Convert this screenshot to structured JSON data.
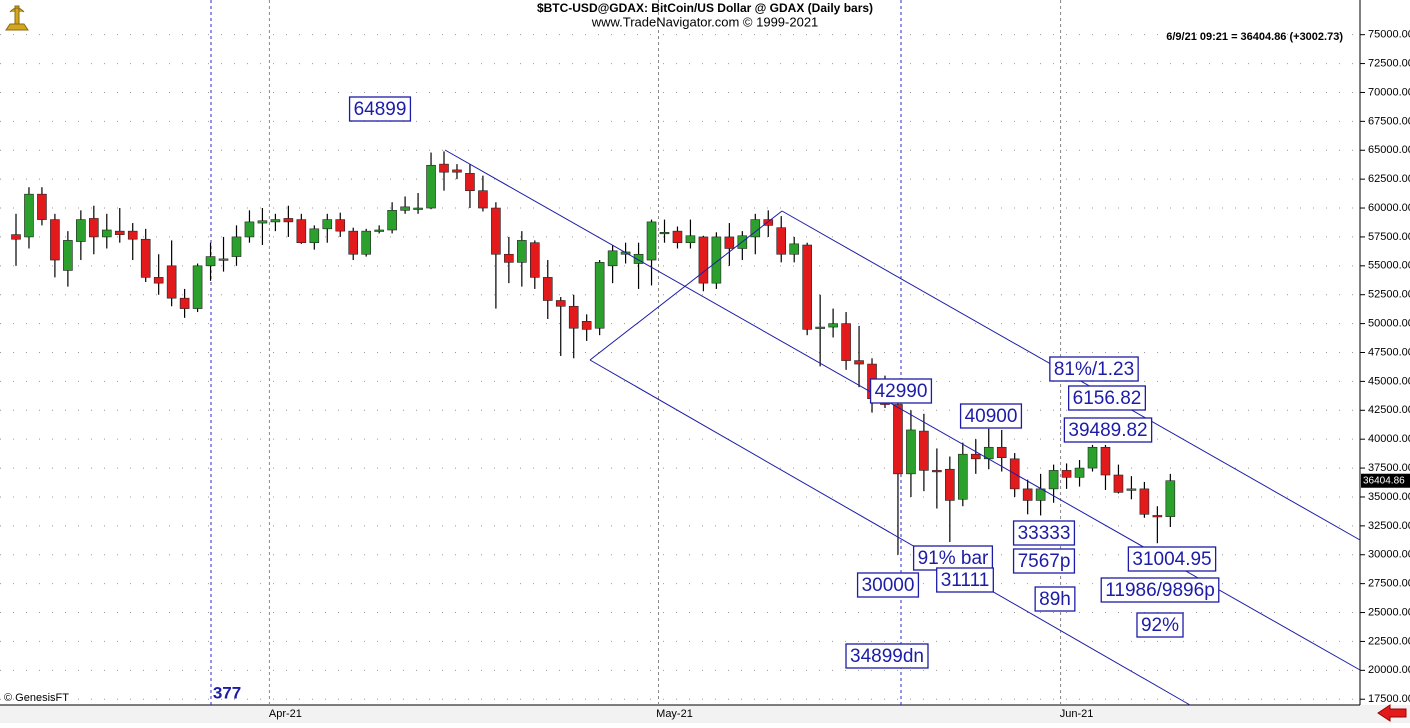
{
  "chart_data": {
    "type": "candlestick",
    "title": "$BTC-USD@GDAX:  BitCoin/US Dollar @ GDAX  (Daily bars)",
    "subtitle": "www.TradeNavigator.com © 1999-2021",
    "info": "6/9/21 09:21 = 36404.86 (+3002.73)",
    "credit": "© GenesisFT",
    "up_color": "#2ca02c",
    "down_color": "#e31a1c",
    "categories": [
      null,
      null,
      null,
      null,
      null,
      null,
      null,
      null,
      null,
      null,
      null,
      null,
      null,
      null,
      null,
      null,
      null,
      null,
      null,
      null,
      "Apr-21",
      null,
      null,
      null,
      null,
      null,
      null,
      null,
      null,
      null,
      null,
      null,
      null,
      null,
      null,
      null,
      null,
      null,
      null,
      null,
      null,
      null,
      null,
      null,
      null,
      null,
      null,
      null,
      null,
      null,
      "May-21",
      null,
      null,
      null,
      null,
      null,
      null,
      null,
      null,
      null,
      null,
      null,
      null,
      null,
      null,
      null,
      null,
      null,
      null,
      null,
      null,
      null,
      null,
      null,
      null,
      null,
      null,
      null,
      null,
      null,
      null,
      "Jun-21",
      null,
      null,
      null,
      null,
      null,
      null,
      null,
      null
    ],
    "open": [
      57700,
      57500,
      61200,
      59000,
      54600,
      57100,
      59100,
      57500,
      58000,
      58000,
      57300,
      54000,
      55000,
      52200,
      51300,
      55000,
      55500,
      55800,
      57500,
      58700,
      58800,
      59100,
      59000,
      57000,
      58200,
      59000,
      58000,
      56000,
      58000,
      58100,
      59800,
      59900,
      60000,
      63800,
      63300,
      63000,
      61500,
      60000,
      56000,
      55300,
      57000,
      54000,
      52000,
      51500,
      50200,
      49600,
      55000,
      56000,
      55200,
      55500,
      57800,
      58000,
      57000,
      57500,
      53500,
      57500,
      56500,
      57500,
      59000,
      58300,
      56000,
      56800,
      49700,
      49700,
      50000,
      46800,
      46500,
      44000,
      43000,
      37000,
      40700,
      37300,
      37400,
      34800,
      38700,
      38300,
      39300,
      38300,
      35700,
      34700,
      35700,
      37300,
      36700,
      37500,
      39300,
      36900,
      35600,
      35700,
      33400,
      33300
    ],
    "high": [
      59500,
      61800,
      61800,
      59500,
      58000,
      59800,
      60200,
      59500,
      60000,
      58700,
      58200,
      56000,
      57200,
      53000,
      55200,
      57000,
      57500,
      58500,
      59800,
      60000,
      59500,
      60200,
      59500,
      58500,
      59500,
      59600,
      58300,
      58200,
      58500,
      60500,
      61000,
      61300,
      64800,
      64900,
      63800,
      63800,
      62800,
      60500,
      57500,
      58000,
      57200,
      55500,
      52300,
      52500,
      50800,
      55500,
      56800,
      57000,
      57000,
      59000,
      59000,
      58400,
      59000,
      57600,
      57900,
      58700,
      58000,
      59500,
      59800,
      59300,
      57500,
      57000,
      52500,
      51300,
      51000,
      49800,
      47000,
      45500,
      43200,
      42500,
      42200,
      39200,
      38500,
      39700,
      40000,
      40900,
      40800,
      38800,
      36500,
      37000,
      37800,
      37900,
      38200,
      39500,
      39500,
      37800,
      36800,
      36300,
      34200,
      37000
    ],
    "low": [
      55000,
      56500,
      58500,
      54000,
      53200,
      55500,
      56000,
      56500,
      57000,
      55500,
      53600,
      52500,
      51500,
      50500,
      51000,
      53700,
      54500,
      55000,
      57000,
      56800,
      58000,
      57500,
      56900,
      56400,
      57000,
      57500,
      55500,
      55800,
      57800,
      57800,
      59500,
      59500,
      59900,
      61500,
      62500,
      60000,
      59700,
      51300,
      53500,
      53200,
      53000,
      50400,
      47200,
      47000,
      48500,
      49000,
      53500,
      55200,
      53000,
      53300,
      57000,
      56500,
      56500,
      52800,
      53000,
      55000,
      55500,
      56000,
      57500,
      55300,
      55300,
      49000,
      46300,
      48800,
      46000,
      44500,
      42300,
      42700,
      30000,
      35000,
      35500,
      34000,
      31100,
      34200,
      37000,
      37400,
      37200,
      35000,
      33500,
      33400,
      34500,
      35700,
      35900,
      37200,
      35600,
      35300,
      34800,
      33200,
      31000,
      32400
    ],
    "close": [
      57300,
      61200,
      59000,
      55500,
      57200,
      59000,
      57500,
      58100,
      57700,
      57300,
      54000,
      53500,
      52200,
      51300,
      55000,
      55800,
      55600,
      57500,
      58800,
      58900,
      59000,
      58800,
      57000,
      58200,
      59000,
      58000,
      56000,
      58000,
      58100,
      59800,
      60100,
      60000,
      63700,
      63100,
      63100,
      61500,
      60000,
      56000,
      55300,
      57200,
      54000,
      52000,
      51500,
      49600,
      49500,
      55300,
      56300,
      56200,
      56000,
      58800,
      57900,
      57000,
      57600,
      53500,
      57500,
      56500,
      57600,
      59000,
      58500,
      56000,
      56900,
      49500,
      49700,
      50000,
      46800,
      46500,
      43500,
      43000,
      37000,
      40800,
      37300,
      37200,
      34700,
      38700,
      38300,
      39300,
      38400,
      35700,
      34700,
      35700,
      37300,
      36700,
      37500,
      39300,
      36900,
      35400,
      35700,
      33500,
      33300,
      36404.86
    ],
    "ylim": [
      17000,
      78000
    ],
    "yticks": [
      {
        "value": 17500,
        "label": "17500.00"
      },
      {
        "value": 20000,
        "label": "20000.00"
      },
      {
        "value": 22500,
        "label": "22500.00"
      },
      {
        "value": 25000,
        "label": "25000.00"
      },
      {
        "value": 27500,
        "label": "27500.00"
      },
      {
        "value": 30000,
        "label": "30000.00"
      },
      {
        "value": 32500,
        "label": "32500.00"
      },
      {
        "value": 35000,
        "label": "35000.00"
      },
      {
        "value": 37500,
        "label": "37500.00"
      },
      {
        "value": 40000,
        "label": "40000.00"
      },
      {
        "value": 42500,
        "label": "42500.00"
      },
      {
        "value": 45000,
        "label": "45000.00"
      },
      {
        "value": 47500,
        "label": "47500.00"
      },
      {
        "value": 50000,
        "label": "50000.00"
      },
      {
        "value": 52500,
        "label": "52500.00"
      },
      {
        "value": 55000,
        "label": "55000.00"
      },
      {
        "value": 57500,
        "label": "57500.00"
      },
      {
        "value": 60000,
        "label": "60000.00"
      },
      {
        "value": 62500,
        "label": "62500.00"
      },
      {
        "value": 65000,
        "label": "65000.00"
      },
      {
        "value": 67500,
        "label": "67500.00"
      },
      {
        "value": 70000,
        "label": "70000.00"
      },
      {
        "value": 72500,
        "label": "72500.00"
      },
      {
        "value": 75000,
        "label": "75000.00"
      }
    ],
    "grid": true,
    "annotations": [
      "64899",
      "42990",
      "40900",
      "81%/1.23",
      "6156.82",
      "39489.82",
      "33333",
      "7567p",
      "89h",
      "91% bar",
      "31111",
      "30000",
      "34899dn",
      "31004.95",
      "11986/9896p",
      "92%"
    ],
    "cycle_label": "377"
  }
}
